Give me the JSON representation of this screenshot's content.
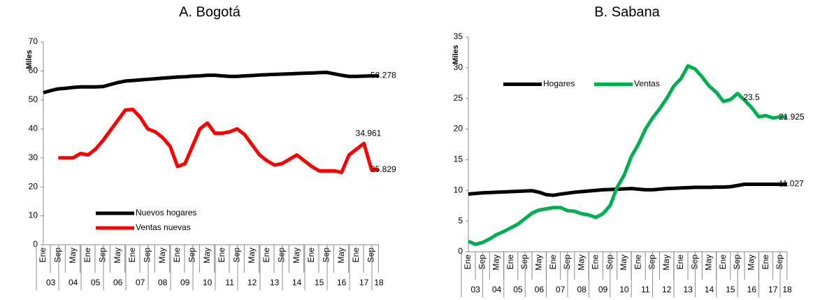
{
  "chart_data": [
    {
      "type": "line",
      "title": "A.   Bogotá",
      "y_label": "Miles",
      "categories": [
        "Ene",
        null,
        "Sep",
        null,
        "May",
        null,
        "Ene",
        null,
        "Sep",
        null,
        "May",
        null,
        "Ene",
        null,
        "Sep",
        null,
        "May",
        null,
        "Ene",
        null,
        "Sep",
        null,
        "May",
        null,
        "Ene",
        null,
        "Sep",
        null,
        "May",
        null,
        "Ene",
        null,
        "Sep",
        null,
        "May",
        null,
        "Ene",
        null,
        "Sep",
        null,
        "May",
        null,
        "Ene",
        null,
        "Sep",
        null
      ],
      "groups": [
        "03",
        "04",
        "05",
        "06",
        "07",
        "08",
        "09",
        "10",
        "11",
        "12",
        "13",
        "14",
        "15",
        "16",
        "17",
        "18"
      ],
      "series": [
        {
          "name": "Nuevos hogares",
          "color": "#000000",
          "values": [
            52.5,
            53.2,
            53.8,
            54.0,
            54.3,
            54.5,
            54.5,
            54.5,
            54.6,
            55.3,
            56.0,
            56.5,
            56.7,
            56.9,
            57.1,
            57.3,
            57.5,
            57.7,
            57.9,
            58.0,
            58.2,
            58.3,
            58.5,
            58.5,
            58.3,
            58.1,
            58.1,
            58.3,
            58.4,
            58.6,
            58.7,
            58.8,
            58.9,
            59.0,
            59.1,
            59.2,
            59.3,
            59.4,
            59.5,
            59.0,
            58.5,
            58.1,
            58.1,
            58.2,
            58.3,
            58.278
          ],
          "value_labels": [
            null,
            null,
            null,
            null,
            null,
            null,
            null,
            null,
            null,
            null,
            null,
            null,
            null,
            null,
            null,
            null,
            null,
            null,
            null,
            null,
            null,
            null,
            null,
            null,
            null,
            null,
            null,
            null,
            null,
            null,
            null,
            null,
            null,
            null,
            null,
            null,
            null,
            null,
            null,
            null,
            null,
            null,
            null,
            null,
            null,
            "58.278"
          ]
        },
        {
          "name": "Ventas nuevas",
          "color": "#ff0000",
          "values": [
            null,
            null,
            30,
            30,
            30,
            31.5,
            31,
            33,
            36,
            39.5,
            43,
            46.5,
            46.7,
            44,
            40,
            39,
            37,
            34,
            27,
            28,
            34,
            40,
            42,
            38.5,
            38.5,
            39,
            40,
            38,
            34.5,
            31,
            29,
            27.5,
            28,
            29.5,
            31,
            29,
            27,
            25.5,
            25.5,
            25.5,
            25,
            31,
            33,
            34.961,
            26,
            25.829
          ],
          "value_labels": [
            null,
            null,
            null,
            null,
            null,
            null,
            null,
            null,
            null,
            null,
            null,
            null,
            null,
            null,
            null,
            null,
            null,
            null,
            null,
            null,
            null,
            null,
            null,
            null,
            null,
            null,
            null,
            null,
            null,
            null,
            null,
            null,
            null,
            null,
            null,
            null,
            null,
            null,
            null,
            null,
            null,
            null,
            null,
            "34.961",
            null,
            "25.829"
          ]
        }
      ],
      "ylim": [
        0,
        70
      ],
      "yticks": [
        0,
        10,
        20,
        30,
        40,
        50,
        60,
        70
      ],
      "legend": "lower left"
    },
    {
      "type": "line",
      "title": "B.   Sabana",
      "y_label": "Miles",
      "categories": [
        "Ene",
        null,
        "Sep",
        null,
        "May",
        null,
        "Ene",
        null,
        "Sep",
        null,
        "May",
        null,
        "Ene",
        null,
        "Sep",
        null,
        "May",
        null,
        "Ene",
        null,
        "Sep",
        null,
        "May",
        null,
        "Ene",
        null,
        "Sep",
        null,
        "May",
        null,
        "Ene",
        null,
        "Sep",
        null,
        "May",
        null,
        "Ene",
        null,
        "Sep",
        null,
        "May",
        null,
        "Ene",
        null,
        "Sep",
        null
      ],
      "groups": [
        "03",
        "04",
        "05",
        "06",
        "07",
        "08",
        "09",
        "10",
        "11",
        "12",
        "13",
        "14",
        "15",
        "16",
        "17",
        "18"
      ],
      "series": [
        {
          "name": "Hogares",
          "color": "#000000",
          "values": [
            9.4,
            9.5,
            9.6,
            9.65,
            9.7,
            9.75,
            9.8,
            9.85,
            9.9,
            9.95,
            9.7,
            9.3,
            9.2,
            9.4,
            9.55,
            9.7,
            9.8,
            9.9,
            10.0,
            10.1,
            10.15,
            10.2,
            10.25,
            10.3,
            10.2,
            10.1,
            10.1,
            10.2,
            10.3,
            10.35,
            10.4,
            10.45,
            10.5,
            10.5,
            10.5,
            10.55,
            10.55,
            10.6,
            10.8,
            11.0,
            11.0,
            11.0,
            11.0,
            11.0,
            11.0,
            11.027
          ],
          "value_labels": [
            null,
            null,
            null,
            null,
            null,
            null,
            null,
            null,
            null,
            null,
            null,
            null,
            null,
            null,
            null,
            null,
            null,
            null,
            null,
            null,
            null,
            null,
            null,
            null,
            null,
            null,
            null,
            null,
            null,
            null,
            null,
            null,
            null,
            null,
            null,
            null,
            null,
            null,
            null,
            null,
            null,
            null,
            null,
            null,
            null,
            "11.027"
          ]
        },
        {
          "name": "Ventas",
          "color": "#00b050",
          "values": [
            1.7,
            1.2,
            1.5,
            2.1,
            2.8,
            3.3,
            3.9,
            4.5,
            5.4,
            6.3,
            6.8,
            7.0,
            7.2,
            7.2,
            6.7,
            6.6,
            6.2,
            6.0,
            5.6,
            6.2,
            7.5,
            10.5,
            12.5,
            15.5,
            17.5,
            20,
            21.8,
            23.3,
            25,
            27,
            28.2,
            30.3,
            29.8,
            28.5,
            27,
            26,
            24.5,
            24.8,
            25.8,
            24.7,
            23.5,
            22,
            22.2,
            21.8,
            22,
            21.925
          ],
          "value_labels": [
            null,
            null,
            null,
            null,
            null,
            null,
            null,
            null,
            null,
            null,
            null,
            null,
            null,
            null,
            null,
            null,
            null,
            null,
            null,
            null,
            null,
            null,
            null,
            null,
            null,
            null,
            null,
            null,
            null,
            null,
            null,
            null,
            null,
            null,
            null,
            null,
            null,
            null,
            null,
            null,
            "23.5",
            null,
            null,
            null,
            null,
            "21.925"
          ]
        }
      ],
      "ylim": [
        0,
        35
      ],
      "yticks": [
        0,
        5,
        10,
        15,
        20,
        25,
        30,
        35
      ],
      "legend": "upper left"
    }
  ]
}
